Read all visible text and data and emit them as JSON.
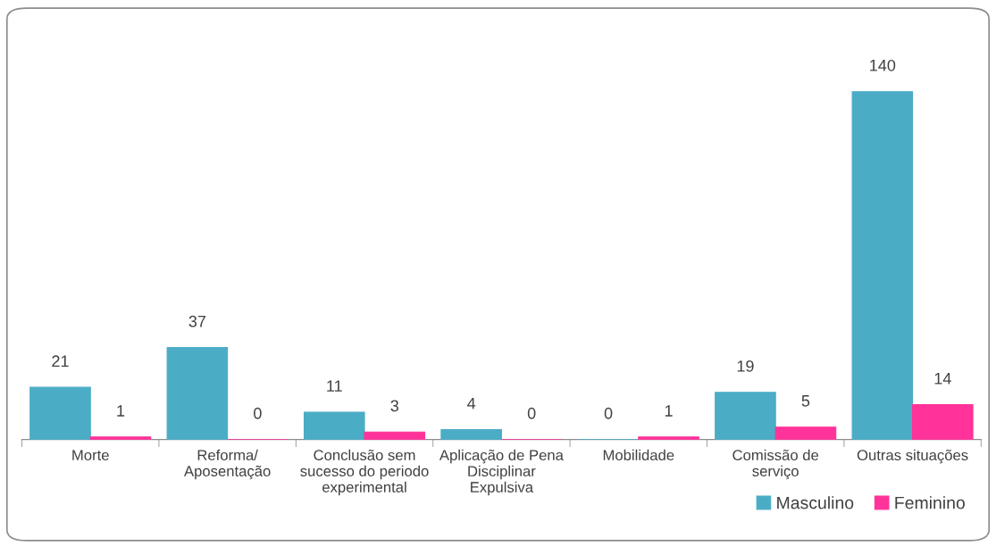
{
  "chart_data": {
    "type": "bar",
    "categories": [
      "Morte",
      "Reforma/\nAposentação",
      "Conclusão sem\nsucesso do periodo\nexperimental",
      "Aplicação de Pena\nDisciplinar\nExpulsiva",
      "Mobilidade",
      "Comissão de\nserviço",
      "Outras situações"
    ],
    "series": [
      {
        "name": "Masculino",
        "color": "#4bacc6",
        "values": [
          21,
          37,
          11,
          4,
          0,
          19,
          140
        ]
      },
      {
        "name": "Feminino",
        "color": "#ff3399",
        "values": [
          1,
          0,
          3,
          0,
          1,
          5,
          14
        ]
      }
    ],
    "data_labels": true,
    "legend": "bottom right"
  }
}
